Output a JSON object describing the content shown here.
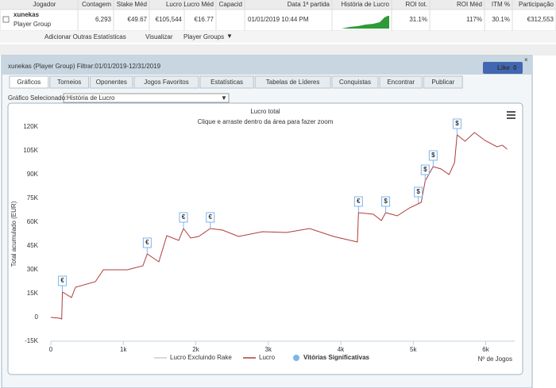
{
  "table": {
    "headers": [
      "Jogador",
      "Contagem",
      "Stake Méd",
      "Lucro",
      "Lucro Méd",
      "Capacid",
      "Data 1ª partida",
      "História de Lucro",
      "ROI tot.",
      "ROI Méd",
      "ITM %",
      "Participação"
    ],
    "cells": [
      [
        "xunekas",
        "Player Group"
      ],
      "6,293",
      "€49.67",
      "€105,544",
      "€16.77",
      null,
      "01/01/2019 10:44 PM",
      null,
      "31.1%",
      "117%",
      "30.1%",
      "€312,553"
    ]
  },
  "toolbar": [
    "Adicionar Outras Estatísticas",
    "Visualizar",
    "Player Groups"
  ],
  "panel": {
    "title": "xunekas (Player Group) Filtrar:01/01/2019-12/31/2019",
    "like": "Like",
    "like_count": "0",
    "tabs": [
      "Gráficos",
      "Torneios",
      "Oponentes",
      "Jogos Favoritos",
      "Estatísticas",
      "Tabelas de Líderes",
      "Conquistas",
      "Encontrar",
      "Publicar"
    ],
    "selector_label": "Gráfico Selecionado:",
    "selector_value": "História de Lucro"
  },
  "chart_data": {
    "type": "line",
    "title": "Lucro total",
    "subtitle": "Clique e arraste dentro da área para fazer zoom",
    "y_label": "Total acumulado (EUR)",
    "x_label": "Nº de Jogos",
    "xlim": [
      0,
      6400
    ],
    "ylim": [
      -15000,
      120000
    ],
    "xticks": [
      0,
      {
        "value": 1000,
        "label": "1k"
      },
      {
        "value": 2000,
        "label": "2k"
      },
      {
        "value": 3000,
        "label": "3k"
      },
      {
        "value": 4000,
        "label": "4k"
      },
      {
        "value": 5000,
        "label": "5k"
      },
      {
        "value": 6000,
        "label": "6k"
      }
    ],
    "yticks": [
      {
        "value": -15000,
        "label": "-15K"
      },
      0,
      {
        "value": 15000,
        "label": "15K"
      },
      {
        "value": 30000,
        "label": "30K"
      },
      {
        "value": 45000,
        "label": "45K"
      },
      {
        "value": 60000,
        "label": "60K"
      },
      {
        "value": 75000,
        "label": "75K"
      },
      {
        "value": 90000,
        "label": "90K"
      },
      {
        "value": 105000,
        "label": "105K"
      },
      {
        "value": 120000,
        "label": "120K"
      }
    ],
    "grid": false,
    "series": [
      {
        "name": "Lucro Excluindo Rake",
        "color": "#cccccc",
        "visible": false,
        "x": [],
        "values": []
      },
      {
        "name": "Lucro",
        "color": "#b03a3a",
        "visible": true,
        "x": [
          0,
          120,
          150,
          160,
          285,
          340,
          615,
          725,
          1055,
          1270,
          1330,
          1490,
          1600,
          1765,
          1830,
          1930,
          2040,
          2200,
          2370,
          2590,
          2920,
          3250,
          3570,
          3900,
          4230,
          4245,
          4450,
          4560,
          4620,
          4780,
          4950,
          5110,
          5165,
          5275,
          5385,
          5495,
          5570,
          5605,
          5715,
          5845,
          5990,
          6155,
          6230,
          6295
        ],
        "values": [
          0,
          -500,
          -1000,
          16000,
          12500,
          19000,
          22500,
          30000,
          30000,
          32500,
          40000,
          35000,
          51500,
          48500,
          56000,
          50000,
          51000,
          56000,
          55000,
          51000,
          54000,
          53500,
          56000,
          51000,
          47500,
          66000,
          65000,
          61000,
          66000,
          64000,
          69000,
          72500,
          86000,
          95000,
          93500,
          90000,
          97500,
          115000,
          111000,
          116500,
          111500,
          107500,
          108500,
          106000
        ]
      },
      {
        "name": "Vitórias Significativas",
        "color": "#7cb5ec",
        "visible": true,
        "x": [
          160,
          1330,
          1830,
          2200,
          4245,
          4620,
          5070,
          5165,
          5275,
          5605
        ],
        "values": [
          16000,
          40000,
          56000,
          56000,
          66000,
          66000,
          72000,
          86000,
          95000,
          115000
        ],
        "flags": [
          "€",
          "€",
          "€",
          "€",
          "€",
          "$",
          "$",
          "$",
          "$",
          "$"
        ]
      }
    ]
  }
}
